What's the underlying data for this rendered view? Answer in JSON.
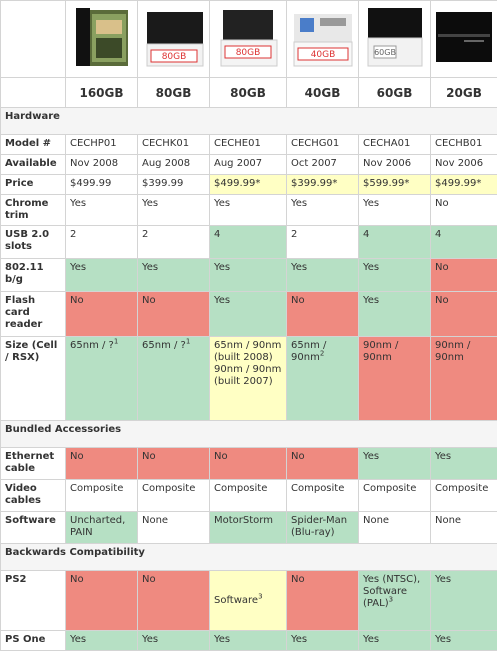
{
  "capacities": [
    "160GB",
    "80GB",
    "80GB",
    "40GB",
    "60GB",
    "20GB"
  ],
  "colors": {
    "yes": "#b6e0c4",
    "no": "#ef8a80",
    "partial": "#ffffc4"
  },
  "sections": {
    "hardware": "Hardware",
    "bundled": "Bundled Accessories",
    "backwards": "Backwards Compatibility"
  },
  "rows": {
    "model": {
      "label": "Model #",
      "cells": [
        "CECHP01",
        "CECHK01",
        "CECHE01",
        "CECHG01",
        "CECHA01",
        "CECHB01"
      ]
    },
    "available": {
      "label": "Available",
      "cells": [
        "Nov 2008",
        "Aug 2008",
        "Aug 2007",
        "Oct 2007",
        "Nov 2006",
        "Nov 2006"
      ]
    },
    "price": {
      "label": "Price",
      "cells": [
        "$499.99",
        "$399.99",
        "$499.99*",
        "$399.99*",
        "$599.99*",
        "$499.99*"
      ]
    },
    "chrome": {
      "label": "Chrome trim",
      "cells": [
        "Yes",
        "Yes",
        "Yes",
        "Yes",
        "Yes",
        "No"
      ]
    },
    "usb": {
      "label": "USB 2.0 slots",
      "cells": [
        "2",
        "2",
        "4",
        "2",
        "4",
        "4"
      ]
    },
    "wifi": {
      "label": "802.11 b/g",
      "cells": [
        "Yes",
        "Yes",
        "Yes",
        "Yes",
        "Yes",
        "No"
      ]
    },
    "flash": {
      "label": "Flash card reader",
      "cells": [
        "No",
        "No",
        "Yes",
        "No",
        "Yes",
        "No"
      ]
    },
    "size": {
      "label": "Size (Cell / RSX)",
      "cells": [
        "65nm / ?",
        "65nm / ?",
        "65nm / 90nm (built 2008) 90nm / 90nm (built 2007)",
        "65nm / 90nm",
        "90nm / 90nm",
        "90nm / 90nm"
      ],
      "sup": [
        "1",
        "1",
        "",
        "2",
        "",
        ""
      ]
    },
    "ethernet": {
      "label": "Ethernet cable",
      "cells": [
        "No",
        "No",
        "No",
        "No",
        "Yes",
        "Yes"
      ]
    },
    "video": {
      "label": "Video cables",
      "cells": [
        "Composite",
        "Composite",
        "Composite",
        "Composite",
        "Composite",
        "Composite"
      ]
    },
    "software": {
      "label": "Software",
      "cells": [
        "Uncharted, PAIN",
        "None",
        "MotorStorm",
        "Spider-Man (Blu-ray)",
        "None",
        "None"
      ]
    },
    "ps2": {
      "label": "PS2",
      "cells": [
        "No",
        "No",
        "Software",
        "No",
        "Yes (NTSC), Software (PAL)",
        "Yes"
      ],
      "sup": [
        "",
        "",
        "3",
        "",
        "3",
        ""
      ]
    },
    "psone": {
      "label": "PS One",
      "cells": [
        "Yes",
        "Yes",
        "Yes",
        "Yes",
        "Yes",
        "Yes"
      ]
    }
  },
  "box_labels": [
    "",
    "80GB",
    "80GB",
    "40GB",
    "60GB",
    ""
  ]
}
